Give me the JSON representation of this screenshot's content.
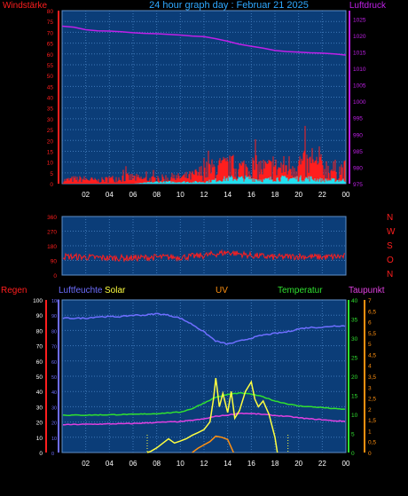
{
  "title": "24 hour graph day : Februar 21 2025",
  "colors": {
    "background": "#000000",
    "plot_bg": "#0B3D78",
    "grid": "#3E78B8",
    "title": "#2EA8FF",
    "wind": "#FF1E1E",
    "gust": "#22E0F0",
    "pressure": "#C020E8",
    "direction": "#FF1E1E",
    "humidity": "#6E6EFF",
    "temperature": "#30E030",
    "dewpoint": "#E040E0",
    "solar": "#FFFF40",
    "uv": "#FF9010"
  },
  "chart_data": [
    {
      "type": "line",
      "panel": "wind-pressure",
      "left_label": "Windstärke",
      "right_label": "Luftdruck",
      "x_ticks": [
        "02",
        "04",
        "06",
        "08",
        "10",
        "12",
        "14",
        "16",
        "18",
        "20",
        "22",
        "00"
      ],
      "x_range_hours": [
        0,
        24
      ],
      "y_left": {
        "ylim": [
          0,
          80
        ],
        "ticks": [
          "0",
          "5",
          "10",
          "15",
          "20",
          "25",
          "30",
          "35",
          "40",
          "45",
          "50",
          "55",
          "60",
          "65",
          "70",
          "75",
          "80"
        ]
      },
      "y_right": {
        "ylim": [
          975,
          1027.5
        ],
        "ticks": [
          "975",
          "980",
          "985",
          "990",
          "995",
          "1000",
          "1005",
          "1010",
          "1015",
          "1020",
          "1025"
        ]
      },
      "series": [
        {
          "name": "Windstärke",
          "axis": "left",
          "style": "noisy-bars",
          "x": [
            0,
            1,
            2,
            3,
            4,
            5,
            6,
            7,
            8,
            9,
            10,
            11,
            12,
            13,
            14,
            15,
            16,
            17,
            18,
            19,
            20,
            21,
            22,
            23,
            24
          ],
          "values": [
            2,
            3,
            3,
            2,
            3,
            4,
            4,
            3,
            3,
            4,
            4,
            5,
            8,
            10,
            11,
            10,
            11,
            10,
            10,
            11,
            13,
            12,
            11,
            9,
            9
          ]
        },
        {
          "name": "Böen",
          "axis": "left",
          "style": "noisy-bars",
          "x": [
            0,
            2,
            4,
            6,
            8,
            10,
            12,
            13,
            14,
            15,
            16,
            17,
            18,
            19,
            20,
            21,
            22,
            23,
            24
          ],
          "values": [
            0,
            0,
            0,
            0,
            1,
            1,
            1,
            2,
            3,
            3,
            3,
            2,
            3,
            3,
            3,
            3,
            2,
            2,
            2
          ]
        },
        {
          "name": "Luftdruck",
          "axis": "right",
          "x": [
            0,
            1,
            2,
            3,
            4,
            5,
            6,
            7,
            8,
            9,
            10,
            11,
            12,
            13,
            14,
            15,
            16,
            17,
            18,
            19,
            20,
            21,
            22,
            23,
            24
          ],
          "values": [
            1022.8,
            1022.5,
            1021.7,
            1021.4,
            1021.3,
            1021.1,
            1020.8,
            1020.6,
            1020.5,
            1020.3,
            1020.1,
            1019.8,
            1019.6,
            1019.0,
            1018.2,
            1017.3,
            1016.7,
            1016.1,
            1015.4,
            1015.1,
            1014.9,
            1014.7,
            1014.6,
            1014.4,
            1014.0
          ]
        }
      ]
    },
    {
      "type": "line",
      "panel": "direction",
      "right_labels": [
        "N",
        "W",
        "S",
        "O",
        "N"
      ],
      "x_range_hours": [
        0,
        24
      ],
      "y_left": {
        "ylim": [
          0,
          360
        ],
        "ticks": [
          "0",
          "90",
          "180",
          "270",
          "360"
        ]
      },
      "series": [
        {
          "name": "Windrichtung",
          "axis": "left",
          "style": "noisy",
          "x": [
            0,
            2,
            4,
            6,
            8,
            10,
            12,
            14,
            16,
            18,
            20,
            22,
            24
          ],
          "values": [
            115,
            110,
            105,
            105,
            110,
            110,
            120,
            140,
            120,
            110,
            115,
            110,
            115
          ]
        }
      ]
    },
    {
      "type": "line",
      "panel": "weather",
      "labels": [
        "Regen",
        "Luftfeuchte",
        "Solar",
        "UV",
        "Temperatur",
        "Taupunkt"
      ],
      "x_ticks": [
        "02",
        "04",
        "06",
        "08",
        "10",
        "12",
        "14",
        "16",
        "18",
        "20",
        "22",
        "00"
      ],
      "x_range_hours": [
        0,
        24
      ],
      "y_humidity": {
        "ylim": [
          0,
          100
        ],
        "ticks": [
          "0",
          "10",
          "20",
          "30",
          "40",
          "50",
          "60",
          "70",
          "80",
          "90",
          "100"
        ]
      },
      "y_temp": {
        "ylim": [
          0,
          40
        ],
        "ticks": [
          "0",
          "5",
          "10",
          "15",
          "20",
          "25",
          "30",
          "35",
          "40"
        ]
      },
      "y_uv": {
        "ylim": [
          0,
          7
        ],
        "ticks": [
          "0",
          "0,5",
          "1",
          "1,5",
          "2",
          "2,5",
          "3",
          "3,5",
          "4",
          "4,5",
          "5",
          "5,5",
          "6",
          "6,5",
          "7"
        ]
      },
      "series": [
        {
          "name": "Luftfeuchte",
          "axis": "humidity",
          "x": [
            0,
            1,
            2,
            3,
            4,
            5,
            6,
            7,
            8,
            9,
            10,
            11,
            12,
            13,
            14,
            15,
            16,
            17,
            18,
            19,
            20,
            21,
            22,
            23,
            24
          ],
          "values": [
            88,
            88,
            88,
            89,
            89,
            89,
            90,
            90,
            91,
            90,
            88,
            84,
            79,
            73,
            71,
            73,
            75,
            77,
            78,
            79,
            81,
            82,
            82,
            83,
            83
          ]
        },
        {
          "name": "Temperatur",
          "axis": "temp",
          "x": [
            0,
            2,
            4,
            6,
            8,
            10,
            11,
            12,
            13,
            14,
            15,
            16,
            17,
            18,
            19,
            20,
            21,
            22,
            23,
            24
          ],
          "values": [
            9.8,
            9.8,
            9.9,
            10,
            10.2,
            10.6,
            11.5,
            13,
            14.5,
            15.2,
            15.6,
            15.3,
            14.6,
            13.5,
            12.8,
            12.2,
            12,
            11.8,
            11.5,
            11.3
          ]
        },
        {
          "name": "Taupunkt",
          "axis": "temp",
          "x": [
            0,
            2,
            4,
            6,
            8,
            10,
            12,
            13,
            14,
            15,
            16,
            17,
            18,
            19,
            20,
            21,
            22,
            23,
            24
          ],
          "values": [
            7.3,
            7.4,
            7.5,
            7.6,
            7.9,
            8.1,
            8.8,
            9.5,
            9.8,
            10.3,
            10.2,
            10,
            9.7,
            9.5,
            9.1,
            8.8,
            8.6,
            8.3,
            8.2
          ]
        },
        {
          "name": "Solar",
          "axis": "temp",
          "x": [
            7.2,
            7.5,
            8,
            8.5,
            9,
            9.5,
            10,
            10.5,
            11,
            11.5,
            12,
            12.5,
            12.8,
            13,
            13.1,
            13.3,
            13.6,
            14,
            14.3,
            14.6,
            15,
            15.5,
            16,
            16.3,
            16.6,
            17,
            17.5,
            18,
            18.2
          ],
          "values": [
            0,
            0.3,
            1.2,
            2.4,
            3.6,
            2.5,
            3,
            3.6,
            4.5,
            5.2,
            6,
            8,
            14,
            19.5,
            17,
            12,
            15.5,
            10.5,
            16,
            9,
            11,
            16,
            18.5,
            14,
            12,
            13.5,
            10,
            4,
            0
          ]
        },
        {
          "name": "UV",
          "axis": "uv",
          "x": [
            11,
            11.5,
            12,
            12.5,
            13,
            13.5,
            14,
            14.5
          ],
          "values": [
            0,
            0.2,
            0.35,
            0.5,
            0.75,
            0.7,
            0.6,
            0
          ]
        }
      ]
    }
  ]
}
